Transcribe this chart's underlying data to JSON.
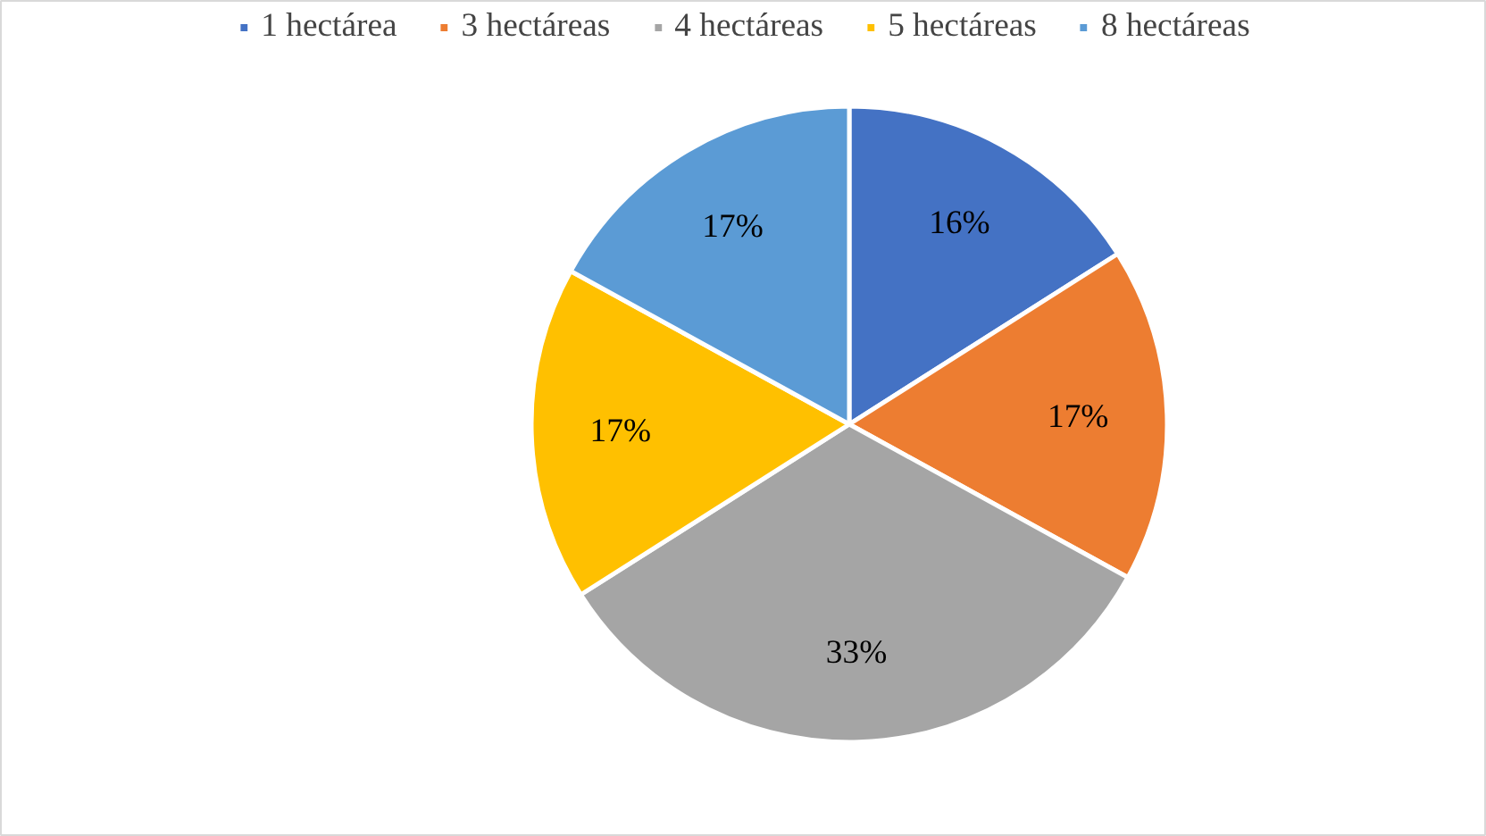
{
  "chart_data": {
    "type": "pie",
    "categories": [
      "1 hectárea",
      "3 hectáreas",
      "4 hectáreas",
      "5 hectáreas",
      "8 hectáreas"
    ],
    "values": [
      16,
      17,
      33,
      17,
      17
    ],
    "colors": [
      "#4472c4",
      "#ed7d31",
      "#a5a5a5",
      "#ffc000",
      "#5b9bd5"
    ],
    "value_labels": [
      "16%",
      "17%",
      "33%",
      "17%",
      "17%"
    ],
    "legend": "top"
  }
}
